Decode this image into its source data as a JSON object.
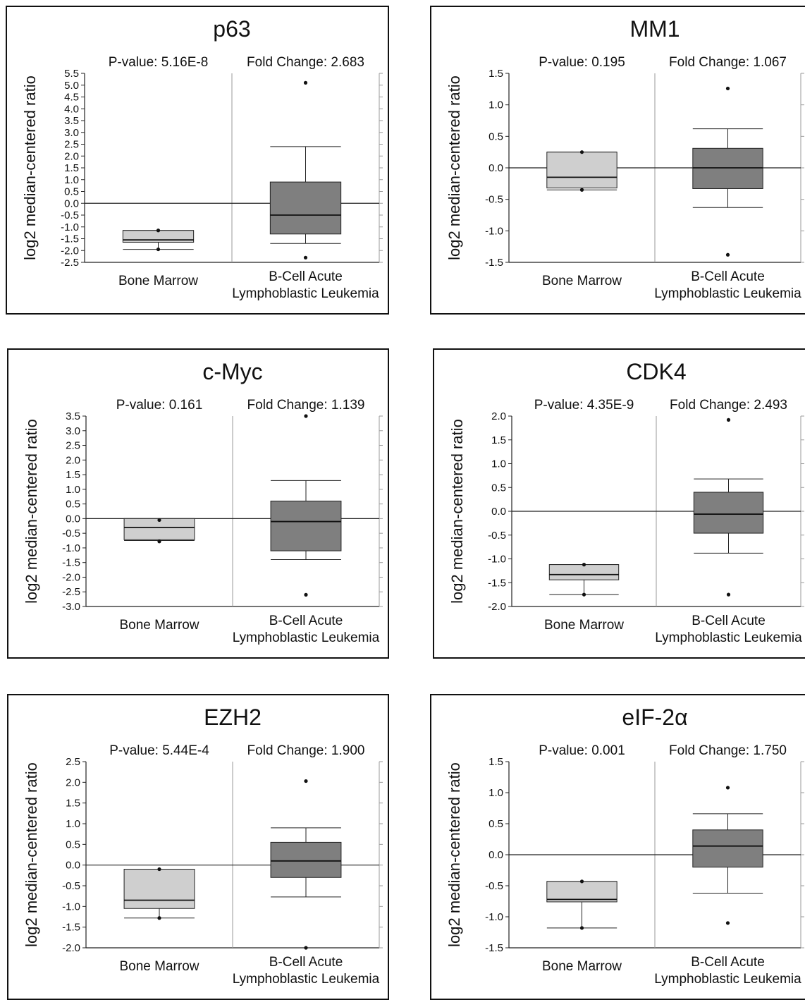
{
  "colors": {
    "normal_box": "#cfcfcf",
    "tumor_box": "#7f7f7f",
    "axis": "#222222",
    "divider": "#9a9a9a",
    "panel_border": "#111111"
  },
  "chart_data": [
    {
      "type": "box",
      "title": "p63",
      "pvalue_text": "P-value: 5.16E-8",
      "fold_text": "Fold Change: 2.683",
      "ylabel": "log2 median-centered ratio",
      "ylim": [
        -2.5,
        5.5
      ],
      "yticks": [
        "5.5",
        "5.0",
        "4.5",
        "4.0",
        "3.5",
        "3.0",
        "2.5",
        "2.0",
        "1.5",
        "1.0",
        "0.5",
        "0.0",
        "-0.5",
        "-1.0",
        "-1.5",
        "-2.0",
        "-2.5"
      ],
      "categories": [
        "Bone Marrow",
        "B-Cell Acute\nLymphoblastic Leukemia"
      ],
      "boxes": [
        {
          "name": "Bone Marrow",
          "whisker_low": -1.95,
          "q1": -1.65,
          "median": -1.55,
          "q3": -1.15,
          "whisker_high": -1.15,
          "points": [
            -1.15,
            -1.95
          ]
        },
        {
          "name": "B-Cell Acute Lymphoblastic Leukemia",
          "whisker_low": -1.7,
          "q1": -1.3,
          "median": -0.5,
          "q3": 0.9,
          "whisker_high": 2.4,
          "points": [
            5.1,
            -2.3
          ]
        }
      ]
    },
    {
      "type": "box",
      "title": "MM1",
      "pvalue_text": "P-value: 0.195",
      "fold_text": "Fold Change: 1.067",
      "ylabel": "log2 median-centered ratio",
      "ylim": [
        -1.5,
        1.5
      ],
      "yticks": [
        "1.5",
        "1.0",
        "0.5",
        "0.0",
        "-0.5",
        "-1.0",
        "-1.5"
      ],
      "categories": [
        "Bone Marrow",
        "B-Cell Acute\nLymphoblastic Leukemia"
      ],
      "boxes": [
        {
          "name": "Bone Marrow",
          "whisker_low": -0.35,
          "q1": -0.32,
          "median": -0.15,
          "q3": 0.25,
          "whisker_high": 0.25,
          "points": [
            0.25,
            -0.35
          ]
        },
        {
          "name": "B-Cell Acute Lymphoblastic Leukemia",
          "whisker_low": -0.63,
          "q1": -0.33,
          "median": 0.0,
          "q3": 0.31,
          "whisker_high": 0.62,
          "points": [
            1.26,
            -1.38
          ]
        }
      ]
    },
    {
      "type": "box",
      "title": "c-Myc",
      "pvalue_text": "P-value: 0.161",
      "fold_text": "Fold Change: 1.139",
      "ylabel": "log2 median-centered ratio",
      "ylim": [
        -3.0,
        3.5
      ],
      "yticks": [
        "3.5",
        "3.0",
        "2.5",
        "2.0",
        "1.5",
        "1.0",
        "0.5",
        "0.0",
        "-0.5",
        "-1.0",
        "-1.5",
        "-2.0",
        "-2.5",
        "-3.0"
      ],
      "categories": [
        "Bone Marrow",
        "B-Cell Acute\nLymphoblastic Leukemia"
      ],
      "boxes": [
        {
          "name": "Bone Marrow",
          "whisker_low": -0.75,
          "q1": -0.72,
          "median": -0.3,
          "q3": 0.0,
          "whisker_high": 0.0,
          "points": [
            -0.05,
            -0.78
          ]
        },
        {
          "name": "B-Cell Acute Lymphoblastic Leukemia",
          "whisker_low": -1.4,
          "q1": -1.1,
          "median": -0.1,
          "q3": 0.6,
          "whisker_high": 1.3,
          "points": [
            3.5,
            -2.6
          ]
        }
      ]
    },
    {
      "type": "box",
      "title": "CDK4",
      "pvalue_text": "P-value: 4.35E-9",
      "fold_text": "Fold Change: 2.493",
      "ylabel": "log2 median-centered ratio",
      "ylim": [
        -2.0,
        2.0
      ],
      "yticks": [
        "2.0",
        "1.5",
        "1.0",
        "0.5",
        "0.0",
        "-0.5",
        "-1.0",
        "-1.5",
        "-2.0"
      ],
      "categories": [
        "Bone Marrow",
        "B-Cell Acute\nLymphoblastic Leukemia"
      ],
      "boxes": [
        {
          "name": "Bone Marrow",
          "whisker_low": -1.75,
          "q1": -1.44,
          "median": -1.33,
          "q3": -1.12,
          "whisker_high": -1.12,
          "points": [
            -1.12,
            -1.75
          ]
        },
        {
          "name": "B-Cell Acute Lymphoblastic Leukemia",
          "whisker_low": -0.88,
          "q1": -0.46,
          "median": -0.06,
          "q3": 0.4,
          "whisker_high": 0.68,
          "points": [
            1.92,
            -1.75
          ]
        }
      ]
    },
    {
      "type": "box",
      "title": "EZH2",
      "pvalue_text": "P-value: 5.44E-4",
      "fold_text": "Fold Change: 1.900",
      "ylabel": "log2 median-centered ratio",
      "ylim": [
        -2.0,
        2.5
      ],
      "yticks": [
        "2.5",
        "2.0",
        "1.5",
        "1.0",
        "0.5",
        "0.0",
        "-0.5",
        "-1.0",
        "-1.5",
        "-2.0"
      ],
      "categories": [
        "Bone Marrow",
        "B-Cell Acute\nLymphoblastic Leukemia"
      ],
      "boxes": [
        {
          "name": "Bone Marrow",
          "whisker_low": -1.28,
          "q1": -1.05,
          "median": -0.85,
          "q3": -0.1,
          "whisker_high": -0.1,
          "points": [
            -0.1,
            -1.28
          ]
        },
        {
          "name": "B-Cell Acute Lymphoblastic Leukemia",
          "whisker_low": -0.77,
          "q1": -0.3,
          "median": 0.1,
          "q3": 0.55,
          "whisker_high": 0.9,
          "points": [
            2.03,
            -2.0
          ]
        }
      ]
    },
    {
      "type": "box",
      "title": "eIF-2α",
      "pvalue_text": "P-value: 0.001",
      "fold_text": "Fold Change: 1.750",
      "ylabel": "log2 median-centered ratio",
      "ylim": [
        -1.5,
        1.5
      ],
      "yticks": [
        "1.5",
        "1.0",
        "0.5",
        "0.0",
        "-0.5",
        "-1.0",
        "-1.5"
      ],
      "categories": [
        "Bone Marrow",
        "B-Cell Acute\nLymphoblastic Leukemia"
      ],
      "boxes": [
        {
          "name": "Bone Marrow",
          "whisker_low": -1.18,
          "q1": -0.76,
          "median": -0.72,
          "q3": -0.43,
          "whisker_high": -0.43,
          "points": [
            -0.43,
            -1.18
          ]
        },
        {
          "name": "B-Cell Acute Lymphoblastic Leukemia",
          "whisker_low": -0.62,
          "q1": -0.2,
          "median": 0.14,
          "q3": 0.4,
          "whisker_high": 0.66,
          "points": [
            1.08,
            -1.1
          ]
        }
      ]
    }
  ]
}
